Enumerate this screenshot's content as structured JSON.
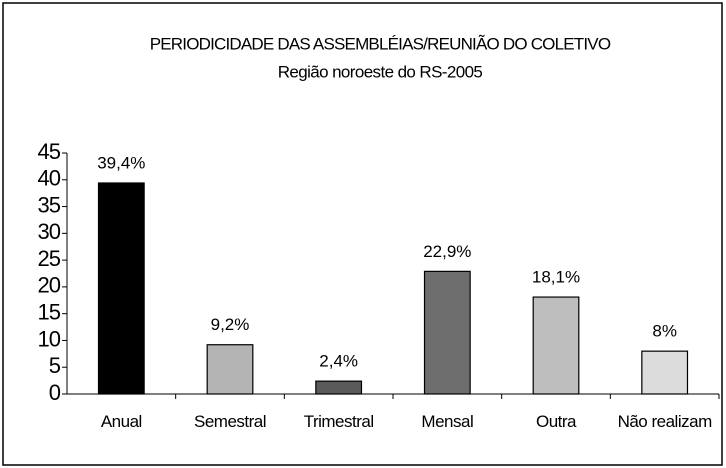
{
  "chart_data": {
    "type": "bar",
    "title": "PERIODICIDADE DAS ASSEMBLÉIAS/REUNIÃO DO COLETIVO",
    "subtitle": "Região noroeste do RS-2005",
    "categories": [
      "Anual",
      "Semestral",
      "Trimestral",
      "Mensal",
      "Outra",
      "Não realizam"
    ],
    "values": [
      39.4,
      9.2,
      2.4,
      22.9,
      18.1,
      8
    ],
    "value_labels": [
      "39,4%",
      "9,2%",
      "2,4%",
      "22,9%",
      "18,1%",
      "8%"
    ],
    "colors": [
      "#000000",
      "#b4b4b4",
      "#5a5a5a",
      "#6e6e6e",
      "#bebebe",
      "#dcdcdc"
    ],
    "ylim": [
      0,
      45
    ],
    "yticks": [
      0,
      5,
      10,
      15,
      20,
      25,
      30,
      35,
      40,
      45
    ],
    "grid": false
  }
}
